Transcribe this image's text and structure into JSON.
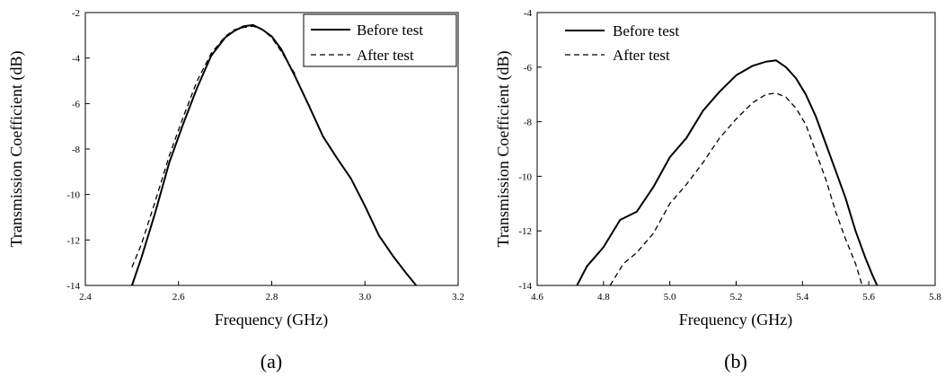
{
  "chart_data": [
    {
      "type": "line",
      "caption": "(a)",
      "xlabel": "Frequency (GHz)",
      "ylabel": "Transmission Coefficient (dB)",
      "xlim": [
        2.4,
        3.2
      ],
      "ylim": [
        -14,
        -2
      ],
      "xticks": [
        "2.4",
        "2.6",
        "2.8",
        "3.0",
        "3.2"
      ],
      "yticks": [
        "-2",
        "-4",
        "-6",
        "-8",
        "-10",
        "-12",
        "-14"
      ],
      "grid": false,
      "legend_position": "top-right",
      "series": [
        {
          "name": "Before test",
          "style": "solid",
          "x": [
            2.5,
            2.52,
            2.55,
            2.58,
            2.61,
            2.64,
            2.67,
            2.7,
            2.72,
            2.74,
            2.76,
            2.78,
            2.8,
            2.82,
            2.85,
            2.88,
            2.91,
            2.94,
            2.97,
            3.0,
            3.03,
            3.06,
            3.09,
            3.11
          ],
          "y": [
            -14.0,
            -12.8,
            -10.8,
            -8.6,
            -6.9,
            -5.3,
            -3.9,
            -3.1,
            -2.8,
            -2.6,
            -2.55,
            -2.75,
            -3.05,
            -3.6,
            -4.8,
            -6.1,
            -7.45,
            -8.4,
            -9.3,
            -10.5,
            -11.8,
            -12.7,
            -13.5,
            -14.0
          ]
        },
        {
          "name": "After test",
          "style": "dashed",
          "x": [
            2.5,
            2.52,
            2.55,
            2.58,
            2.61,
            2.64,
            2.67,
            2.7,
            2.72,
            2.74,
            2.76,
            2.78,
            2.8,
            2.82,
            2.85
          ],
          "y": [
            -13.2,
            -12.2,
            -10.3,
            -8.3,
            -6.6,
            -5.0,
            -3.8,
            -3.05,
            -2.75,
            -2.65,
            -2.6,
            -2.75,
            -3.1,
            -3.7,
            -4.7
          ]
        }
      ]
    },
    {
      "type": "line",
      "caption": "(b)",
      "xlabel": "Frequency (GHz)",
      "ylabel": "Transmission Coefficient (dB)",
      "xlim": [
        4.6,
        5.8
      ],
      "ylim": [
        -14,
        -4
      ],
      "xticks": [
        "4.6",
        "4.8",
        "5.0",
        "5.2",
        "5.4",
        "5.6",
        "5.8"
      ],
      "yticks": [
        "-4",
        "-6",
        "-8",
        "-10",
        "-12",
        "-14"
      ],
      "grid": false,
      "legend_position": "top-left",
      "series": [
        {
          "name": "Before test",
          "style": "solid",
          "x": [
            4.72,
            4.75,
            4.8,
            4.85,
            4.9,
            4.95,
            5.0,
            5.05,
            5.1,
            5.15,
            5.2,
            5.25,
            5.29,
            5.32,
            5.35,
            5.38,
            5.41,
            5.44,
            5.47,
            5.5,
            5.53,
            5.56,
            5.59,
            5.61,
            5.625
          ],
          "y": [
            -14.0,
            -13.3,
            -12.6,
            -11.6,
            -11.3,
            -10.4,
            -9.3,
            -8.6,
            -7.6,
            -6.9,
            -6.3,
            -5.95,
            -5.8,
            -5.75,
            -6.0,
            -6.4,
            -7.0,
            -7.8,
            -8.8,
            -9.8,
            -10.8,
            -12.0,
            -13.0,
            -13.6,
            -14.0
          ]
        },
        {
          "name": "After test",
          "style": "dashed",
          "x": [
            4.82,
            4.86,
            4.9,
            4.95,
            5.0,
            5.05,
            5.1,
            5.15,
            5.2,
            5.25,
            5.29,
            5.32,
            5.35,
            5.38,
            5.41,
            5.44,
            5.47,
            5.5,
            5.53,
            5.56,
            5.58
          ],
          "y": [
            -14.0,
            -13.2,
            -12.8,
            -12.1,
            -11.0,
            -10.3,
            -9.5,
            -8.6,
            -7.9,
            -7.3,
            -7.0,
            -6.95,
            -7.1,
            -7.5,
            -8.1,
            -9.1,
            -10.1,
            -11.3,
            -12.3,
            -13.2,
            -14.0
          ]
        }
      ]
    }
  ]
}
